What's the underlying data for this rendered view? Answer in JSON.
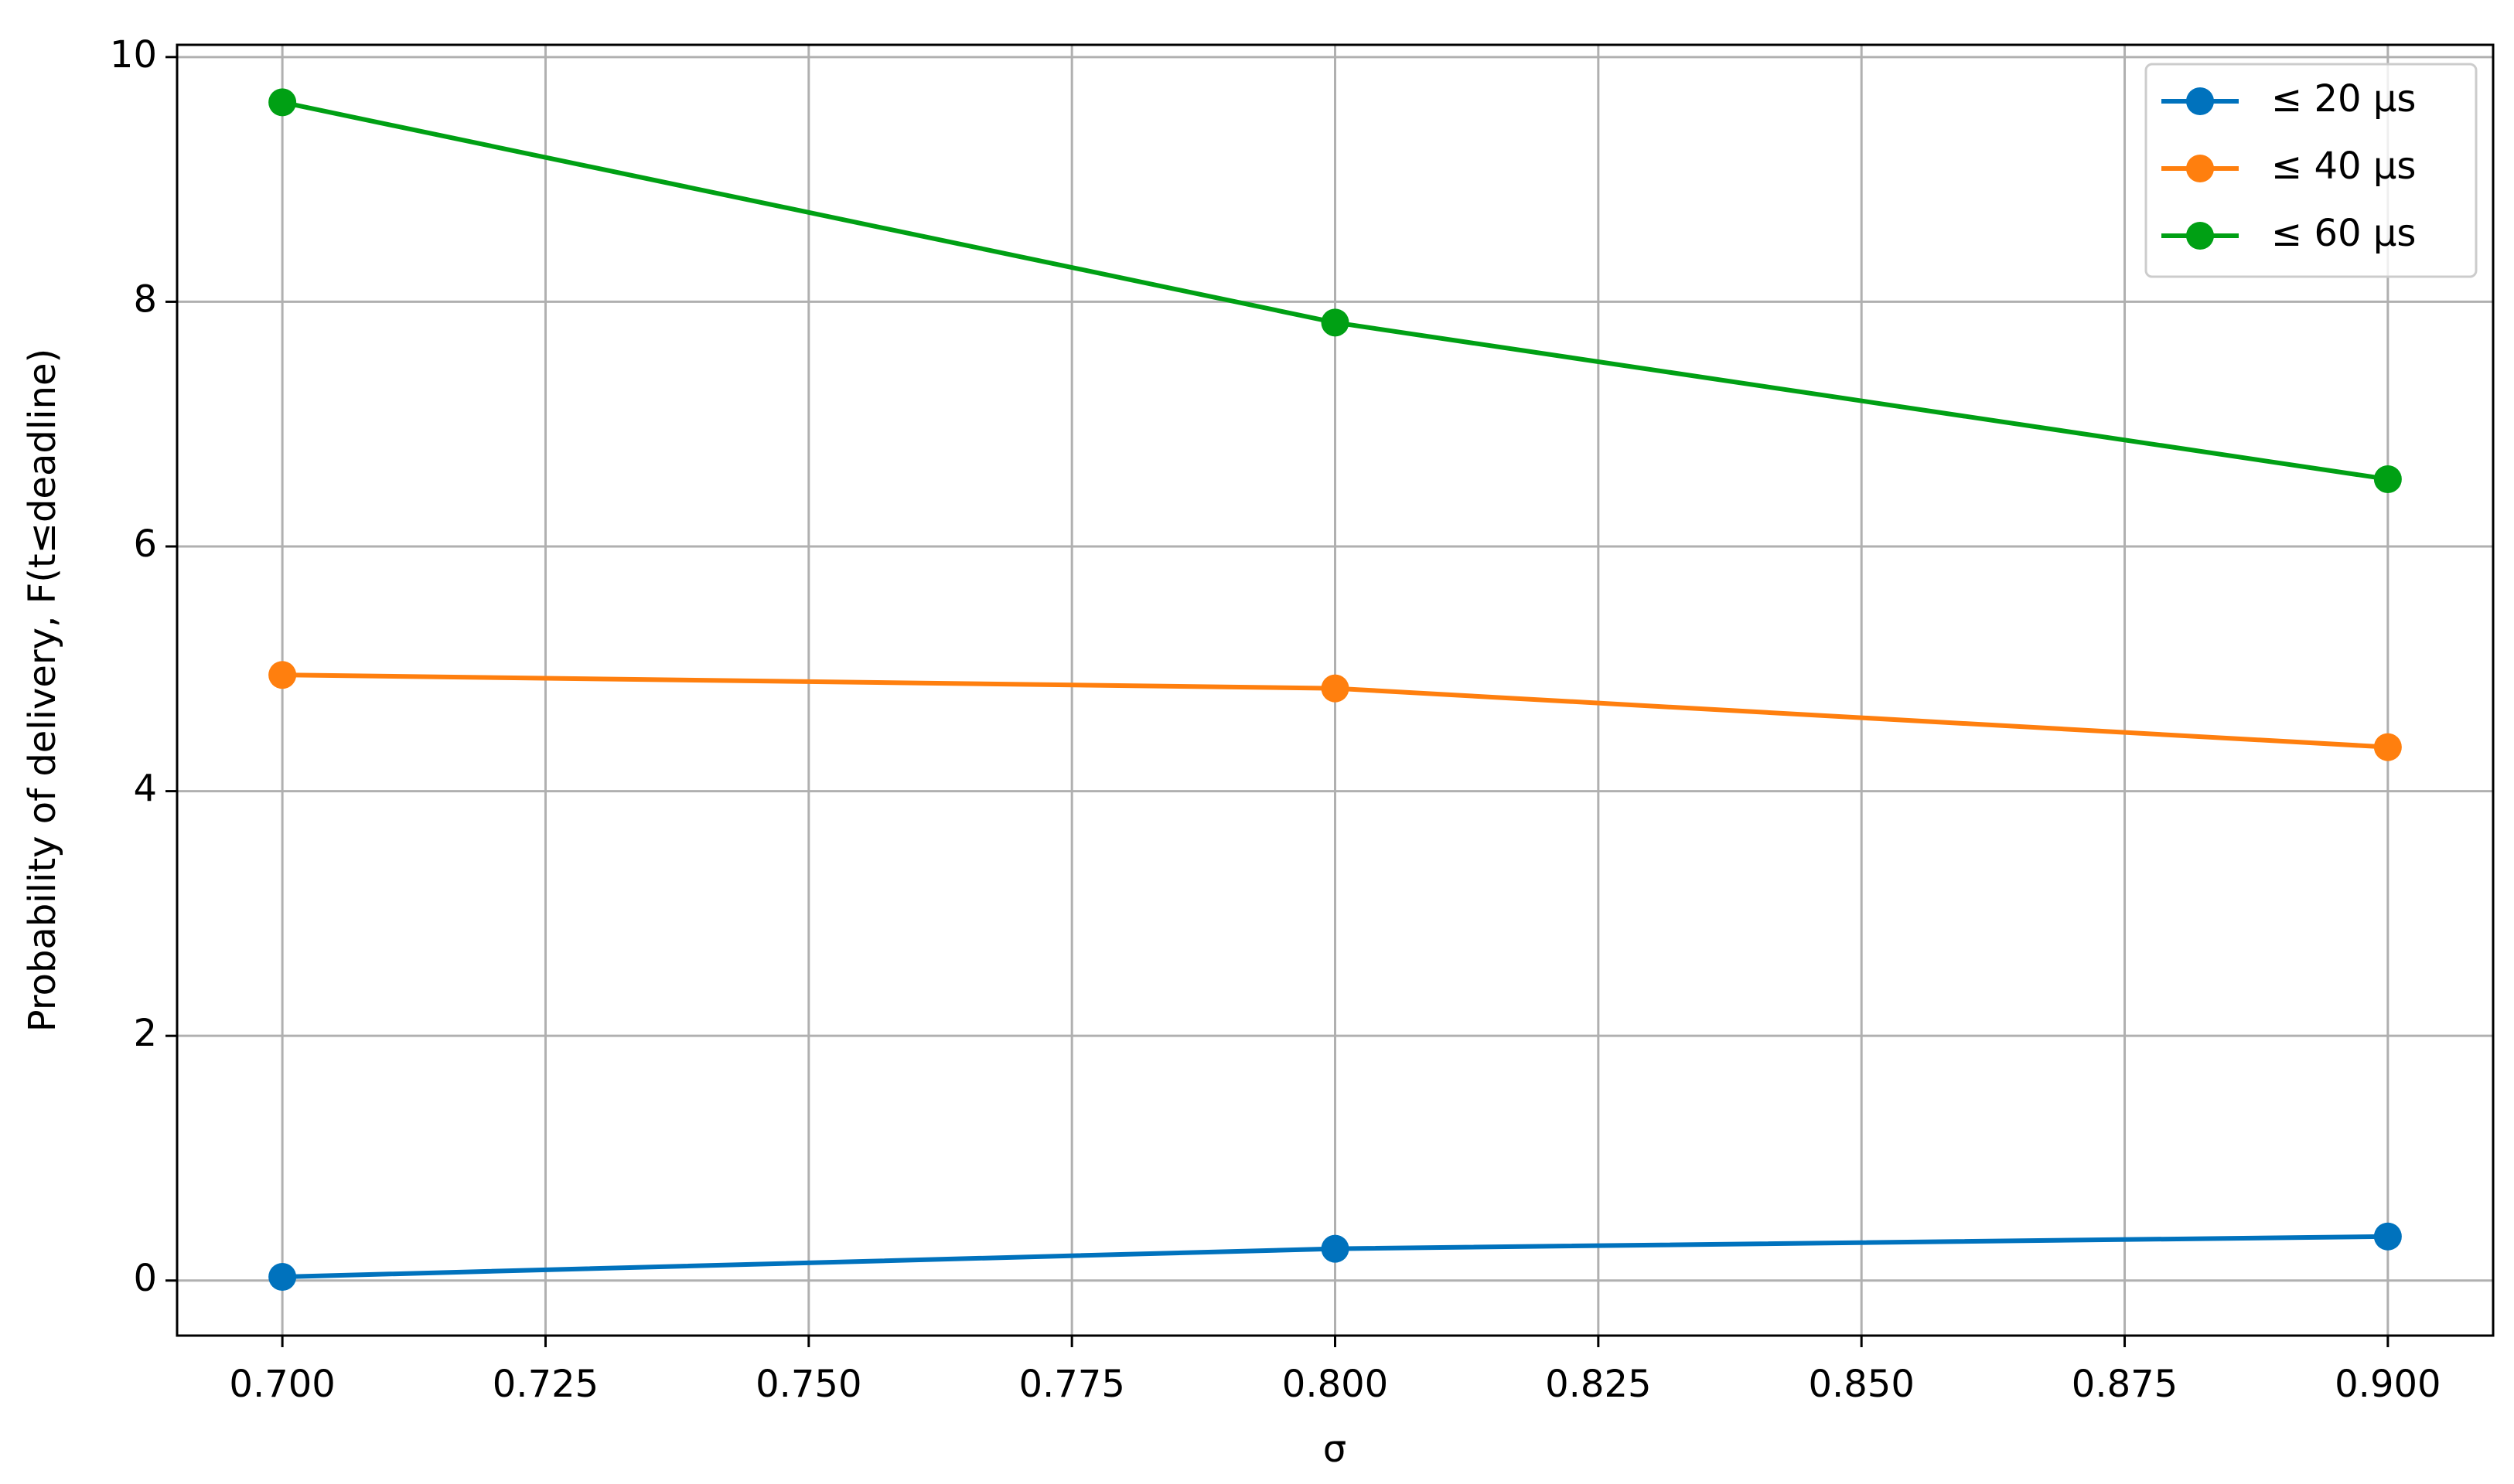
{
  "chart_data": {
    "type": "line",
    "x_label": "σ",
    "y_label": "Probability of delivery, F(t≤deadline)",
    "x": [
      0.7,
      0.8,
      0.9
    ],
    "series": [
      {
        "name": "≤ 20 μs",
        "color": "#0072bd",
        "values": [
          0.03,
          0.26,
          0.36
        ]
      },
      {
        "name": "≤ 40 μs",
        "color": "#ff7f0e",
        "values": [
          4.95,
          4.84,
          4.36
        ]
      },
      {
        "name": "≤ 60 μs",
        "color": "#00a014",
        "values": [
          9.63,
          7.83,
          6.55
        ]
      }
    ],
    "xlim": [
      0.69,
      0.91
    ],
    "ylim": [
      -0.45,
      10.1
    ],
    "xticks": [
      {
        "value": 0.7,
        "label": "0.700"
      },
      {
        "value": 0.725,
        "label": "0.725"
      },
      {
        "value": 0.75,
        "label": "0.750"
      },
      {
        "value": 0.775,
        "label": "0.775"
      },
      {
        "value": 0.8,
        "label": "0.800"
      },
      {
        "value": 0.825,
        "label": "0.825"
      },
      {
        "value": 0.85,
        "label": "0.850"
      },
      {
        "value": 0.875,
        "label": "0.875"
      },
      {
        "value": 0.9,
        "label": "0.900"
      }
    ],
    "yticks": [
      0,
      2,
      4,
      6,
      8,
      10
    ],
    "grid": true,
    "legend": "upper right",
    "markers": true
  }
}
